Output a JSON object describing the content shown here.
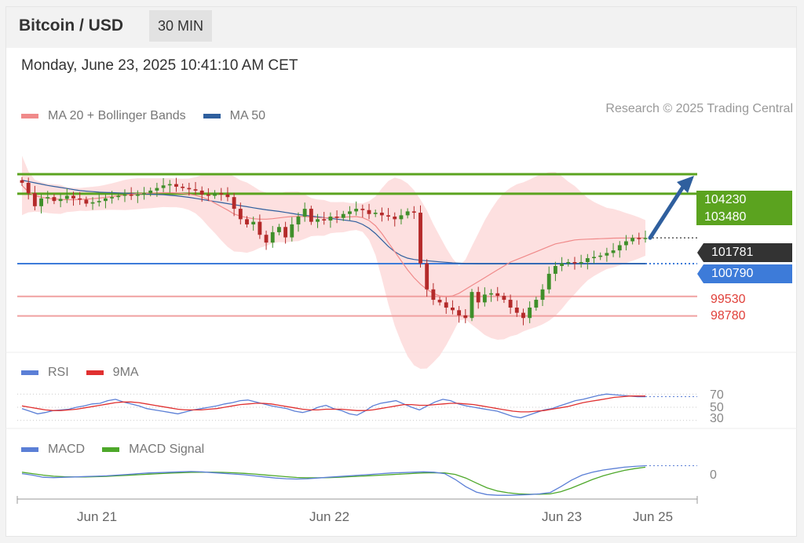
{
  "header": {
    "title": "Bitcoin / USD",
    "timeframe": "30 MIN"
  },
  "datetime": "Monday, June 23, 2025 10:41:10 AM CET",
  "credit": "Research © 2025 Trading Central",
  "colors": {
    "green": "#5ba31f",
    "blue": "#3d7bd9",
    "red": "#e0403a",
    "band": "#fddada",
    "ma20": "#f08a8a",
    "ma50": "#2f5f9e",
    "arrow": "#2f5f9e"
  },
  "chart_data": [
    {
      "type": "candlestick",
      "legend": [
        {
          "name": "MA 20 + Bollinger Bands",
          "color": "#f08a8a"
        },
        {
          "name": "MA 50",
          "color": "#2f5f9e"
        }
      ],
      "x_tick_labels": [
        "Jun 21",
        "Jun 22",
        "Jun 23",
        "Jun 25"
      ],
      "levels": [
        {
          "value": 104230,
          "kind": "resistance",
          "color": "#5ba31f"
        },
        {
          "value": 103480,
          "kind": "resistance",
          "color": "#5ba31f"
        },
        {
          "value": 101781,
          "kind": "last",
          "color": "#333333"
        },
        {
          "value": 100790,
          "kind": "pivot",
          "color": "#3d7bd9"
        },
        {
          "value": 99530,
          "kind": "support",
          "color": "#e0403a"
        },
        {
          "value": 98780,
          "kind": "support",
          "color": "#e0403a"
        }
      ],
      "labels": {
        "r1": "104230",
        "r2": "103480",
        "last": "101781",
        "pivot": "100790",
        "s1": "99530",
        "s2": "98780"
      },
      "close": [
        103900,
        103500,
        103000,
        103300,
        103350,
        103200,
        103280,
        103400,
        103300,
        103250,
        103100,
        103150,
        103200,
        103300,
        103350,
        103400,
        103450,
        103400,
        103450,
        103500,
        103600,
        103700,
        103800,
        103850,
        103750,
        103700,
        103650,
        103600,
        103450,
        103400,
        103500,
        103450,
        103350,
        102900,
        102500,
        102300,
        102400,
        101900,
        101600,
        102000,
        102200,
        101800,
        102300,
        102600,
        102900,
        102400,
        102500,
        102450,
        102600,
        102550,
        102700,
        102800,
        102900,
        102850,
        102700,
        102750,
        102650,
        102600,
        102500,
        102650,
        102800,
        102750,
        100800,
        99800,
        99400,
        99300,
        99100,
        99000,
        98800,
        98700,
        99700,
        99300,
        99600,
        99650,
        99550,
        99400,
        99100,
        98900,
        98700,
        99100,
        99400,
        99800,
        100400,
        100700,
        100800,
        100850,
        100800,
        100850,
        101000,
        101050,
        101100,
        101200,
        101300,
        101500,
        101650,
        101780,
        101760,
        101781
      ],
      "ma20": [
        103800,
        103550,
        103400,
        103350,
        103300,
        103280,
        103260,
        103250,
        103250,
        103260,
        103270,
        103290,
        103310,
        103340,
        103370,
        103400,
        103430,
        103460,
        103480,
        103490,
        103500,
        103510,
        103520,
        103520,
        103510,
        103490,
        103460,
        103420,
        103350,
        103250,
        103120,
        102980,
        102850,
        102700,
        102620,
        102560,
        102520,
        102500,
        102500,
        102520,
        102550,
        102580,
        102600,
        102610,
        102600,
        102580,
        102560,
        102550,
        102560,
        102570,
        102580,
        102590,
        102600,
        102560,
        102450,
        102250,
        101950,
        101600,
        101250,
        100900,
        100550,
        100250,
        100000,
        99800,
        99650,
        99550,
        99520,
        99550,
        99650,
        99800,
        99950,
        100100,
        100250,
        100400,
        100550,
        100700,
        100850,
        100950,
        101050,
        101150,
        101250,
        101350,
        101450,
        101550,
        101600,
        101650,
        101700,
        101720,
        101730,
        101740,
        101750,
        101760,
        101770,
        101775,
        101778,
        101780,
        101781,
        101781
      ],
      "ma50": [
        104000,
        103950,
        103900,
        103850,
        103800,
        103760,
        103720,
        103680,
        103640,
        103600,
        103580,
        103560,
        103540,
        103530,
        103520,
        103510,
        103500,
        103490,
        103480,
        103470,
        103460,
        103450,
        103440,
        103420,
        103400,
        103370,
        103340,
        103300,
        103260,
        103220,
        103180,
        103140,
        103100,
        103060,
        103020,
        102980,
        102940,
        102900,
        102860,
        102830,
        102800,
        102760,
        102720,
        102680,
        102650,
        102620,
        102590,
        102560,
        102530,
        102500,
        102470,
        102440,
        102400,
        102300,
        102150,
        101950,
        101700,
        101450,
        101250,
        101100,
        101000,
        100950,
        100920,
        100900,
        100880,
        100860,
        100840,
        100820,
        100810,
        100800,
        100795,
        100790,
        100790,
        100790,
        100790,
        100790,
        100790,
        100790,
        100790,
        100790,
        100790,
        100790,
        100790,
        100790,
        100790,
        100790,
        100790,
        100790,
        100790,
        100790,
        100790,
        100790,
        100790,
        100790,
        100790,
        100790,
        100790,
        100790
      ],
      "y_domain": [
        97500,
        105800
      ]
    },
    {
      "type": "line",
      "legend": [
        {
          "name": "RSI",
          "color": "#5b7fd6"
        },
        {
          "name": "9MA",
          "color": "#e03030"
        }
      ],
      "ref_labels": [
        "70",
        "50",
        "30"
      ],
      "rsi": [
        48,
        44,
        40,
        42,
        45,
        46,
        47,
        50,
        52,
        55,
        56,
        60,
        62,
        58,
        55,
        52,
        48,
        46,
        44,
        42,
        40,
        43,
        46,
        48,
        50,
        52,
        55,
        57,
        60,
        61,
        58,
        55,
        52,
        50,
        48,
        44,
        42,
        45,
        50,
        53,
        48,
        45,
        40,
        38,
        44,
        52,
        56,
        58,
        60,
        55,
        50,
        46,
        52,
        58,
        62,
        60,
        55,
        52,
        50,
        48,
        46,
        44,
        40,
        36,
        34,
        38,
        42,
        46,
        48,
        52,
        56,
        60,
        62,
        65,
        68,
        70,
        69,
        68,
        67,
        66,
        66
      ],
      "ma9": [
        52,
        50,
        48,
        46,
        45,
        45,
        46,
        47,
        49,
        51,
        53,
        55,
        57,
        58,
        58,
        57,
        55,
        53,
        51,
        49,
        47,
        46,
        46,
        46,
        47,
        48,
        50,
        52,
        54,
        55,
        56,
        56,
        55,
        53,
        51,
        49,
        47,
        46,
        46,
        47,
        47,
        47,
        46,
        45,
        45,
        46,
        48,
        50,
        52,
        54,
        54,
        53,
        53,
        54,
        55,
        56,
        56,
        55,
        54,
        52,
        50,
        48,
        46,
        44,
        43,
        43,
        44,
        45,
        47,
        49,
        51,
        54,
        57,
        59,
        61,
        63,
        65,
        66,
        67,
        67,
        67
      ]
    },
    {
      "type": "line",
      "legend": [
        {
          "name": "MACD",
          "color": "#5b7fd6"
        },
        {
          "name": "MACD Signal",
          "color": "#4ea82a"
        }
      ],
      "ref_labels": [
        "0"
      ],
      "macd": [
        60,
        20,
        -40,
        -50,
        -40,
        -30,
        -20,
        -10,
        0,
        20,
        40,
        60,
        80,
        90,
        100,
        110,
        120,
        110,
        90,
        70,
        50,
        30,
        0,
        -30,
        -60,
        -80,
        -90,
        -80,
        -60,
        -40,
        -20,
        0,
        20,
        40,
        60,
        80,
        90,
        100,
        110,
        100,
        60,
        -100,
        -300,
        -450,
        -520,
        -540,
        -540,
        -530,
        -520,
        -500,
        -460,
        -300,
        -120,
        20,
        100,
        160,
        200,
        240,
        260,
        280
      ],
      "signal": [
        100,
        60,
        20,
        -10,
        -25,
        -30,
        -30,
        -25,
        -15,
        0,
        15,
        30,
        45,
        60,
        75,
        85,
        95,
        100,
        100,
        95,
        85,
        70,
        50,
        25,
        0,
        -25,
        -45,
        -55,
        -55,
        -50,
        -40,
        -25,
        -10,
        5,
        20,
        35,
        50,
        65,
        80,
        85,
        80,
        40,
        -60,
        -200,
        -330,
        -420,
        -470,
        -500,
        -510,
        -510,
        -500,
        -440,
        -340,
        -220,
        -100,
        0,
        80,
        150,
        200,
        240
      ]
    }
  ]
}
